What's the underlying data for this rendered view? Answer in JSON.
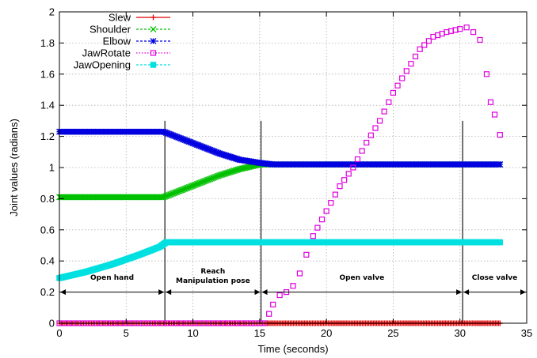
{
  "chart_data": {
    "type": "scatter",
    "title": "",
    "xlabel": "Time (seconds)",
    "ylabel": "Joint values (radians)",
    "xlim": [
      0,
      35
    ],
    "ylim": [
      0,
      2
    ],
    "x_ticks": [
      "0",
      "5",
      "10",
      "15",
      "20",
      "25",
      "30",
      "35"
    ],
    "y_ticks": [
      "0",
      "0.2",
      "0.4",
      "0.6",
      "0.8",
      "1",
      "1.2",
      "1.4",
      "1.6",
      "1.8",
      "2"
    ],
    "grid": true,
    "legend_position": "top-left",
    "series": [
      {
        "name": "Slew",
        "color": "#e00000",
        "marker": "plus",
        "points": [
          [
            0,
            0
          ],
          [
            15.6,
            0
          ],
          [
            33,
            0
          ]
        ]
      },
      {
        "name": "Shoulder",
        "color": "#00c000",
        "marker": "cross",
        "points": [
          [
            0,
            0.81
          ],
          [
            7,
            0.81
          ],
          [
            7.8,
            0.81
          ],
          [
            9,
            0.85
          ],
          [
            10.5,
            0.9
          ],
          [
            12,
            0.95
          ],
          [
            13.5,
            0.99
          ],
          [
            15,
            1.02
          ],
          [
            16,
            1.02
          ],
          [
            33,
            1.02
          ]
        ]
      },
      {
        "name": "Elbow",
        "color": "#0000e0",
        "marker": "asterisk",
        "points": [
          [
            0,
            1.23
          ],
          [
            7.8,
            1.23
          ],
          [
            9,
            1.19
          ],
          [
            10.5,
            1.14
          ],
          [
            12,
            1.09
          ],
          [
            13.5,
            1.05
          ],
          [
            15,
            1.03
          ],
          [
            16,
            1.02
          ],
          [
            33,
            1.02
          ]
        ]
      },
      {
        "name": "JawRotate",
        "color": "#e000e0",
        "marker": "square",
        "points": [
          [
            0,
            0
          ],
          [
            15.4,
            0
          ],
          [
            15.7,
            0.06
          ],
          [
            16,
            0.12
          ],
          [
            16.5,
            0.18
          ],
          [
            17,
            0.2
          ],
          [
            17.5,
            0.24
          ],
          [
            18,
            0.32
          ],
          [
            18.5,
            0.44
          ],
          [
            19,
            0.56
          ],
          [
            20,
            0.72
          ],
          [
            21,
            0.88
          ],
          [
            22,
            1.0
          ],
          [
            23,
            1.16
          ],
          [
            24,
            1.3
          ],
          [
            25,
            1.48
          ],
          [
            26,
            1.62
          ],
          [
            27,
            1.76
          ],
          [
            28,
            1.84
          ],
          [
            29,
            1.87
          ],
          [
            30,
            1.89
          ],
          [
            30.5,
            1.9
          ],
          [
            31,
            1.87
          ],
          [
            31.5,
            1.82
          ],
          [
            32,
            1.6
          ],
          [
            32.3,
            1.42
          ],
          [
            32.6,
            1.34
          ],
          [
            33,
            1.21
          ]
        ]
      },
      {
        "name": "JawOpening",
        "color": "#00e0e0",
        "marker": "filled-square",
        "points": [
          [
            0,
            0.29
          ],
          [
            2,
            0.33
          ],
          [
            4,
            0.38
          ],
          [
            6,
            0.44
          ],
          [
            7.5,
            0.49
          ],
          [
            8,
            0.52
          ],
          [
            33,
            0.52
          ]
        ]
      }
    ],
    "phase_boundaries": [
      7.9,
      15.1,
      30.2
    ],
    "phases": [
      {
        "label": "Open hand",
        "start": 0,
        "end": 7.9
      },
      {
        "label": "Reach Manipulation pose",
        "start": 7.9,
        "end": 15.1
      },
      {
        "label": "Open valve",
        "start": 15.1,
        "end": 30.2
      },
      {
        "label": "Close valve",
        "start": 30.2,
        "end": 35
      }
    ],
    "phase_arrow_y": 0.2
  }
}
